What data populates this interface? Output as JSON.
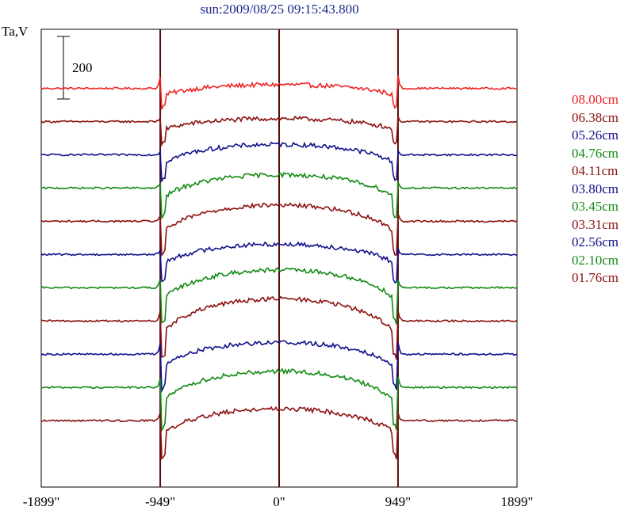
{
  "chart_data": {
    "type": "line",
    "title": "sun:2009/08/25 09:15:43.800",
    "ylabel": "Ta,V",
    "scale_bar_label": "200",
    "x_ticks": [
      "-1899\"",
      "-949\"",
      "0\"",
      "949\"",
      "1899\""
    ],
    "x_tick_values": [
      -1899,
      -949,
      0,
      949,
      1899
    ],
    "xlim": [
      -1899,
      1899
    ],
    "vertical_lines": [
      -949,
      0,
      949
    ],
    "grid": false,
    "legend_placement": "right",
    "series": [
      {
        "name": "08.00cm",
        "color": "#ee2222",
        "baseline": 200,
        "disk": 5,
        "limb_dip": 16,
        "spike": 18
      },
      {
        "name": "06.38cm",
        "color": "#8b1010",
        "baseline": 155,
        "disk": 4,
        "limb_dip": 18,
        "spike": 6
      },
      {
        "name": "05.26cm",
        "color": "#10108b",
        "baseline": 110,
        "disk": 14,
        "limb_dip": 22,
        "spike": 6
      },
      {
        "name": "04.76cm",
        "color": "#128a12",
        "baseline": 65,
        "disk": 18,
        "limb_dip": 26,
        "spike": 8
      },
      {
        "name": "04.11cm",
        "color": "#8b1010",
        "baseline": 20,
        "disk": 22,
        "limb_dip": 30,
        "spike": 10
      },
      {
        "name": "03.80cm",
        "color": "#10108b",
        "baseline": -25,
        "disk": 14,
        "limb_dip": 24,
        "spike": 8
      },
      {
        "name": "03.45cm",
        "color": "#128a12",
        "baseline": -70,
        "disk": 24,
        "limb_dip": 32,
        "spike": 12
      },
      {
        "name": "03.31cm",
        "color": "#8b1010",
        "baseline": -115,
        "disk": 30,
        "limb_dip": 34,
        "spike": 14
      },
      {
        "name": "02.56cm",
        "color": "#10108b",
        "baseline": -160,
        "disk": 16,
        "limb_dip": 30,
        "spike": 16
      },
      {
        "name": "02.10cm",
        "color": "#128a12",
        "baseline": -205,
        "disk": 22,
        "limb_dip": 36,
        "spike": 14
      },
      {
        "name": "01.76cm",
        "color": "#8b1010",
        "baseline": -250,
        "disk": 16,
        "limb_dip": 32,
        "spike": 12
      }
    ],
    "ylim": [
      -340,
      280
    ]
  }
}
